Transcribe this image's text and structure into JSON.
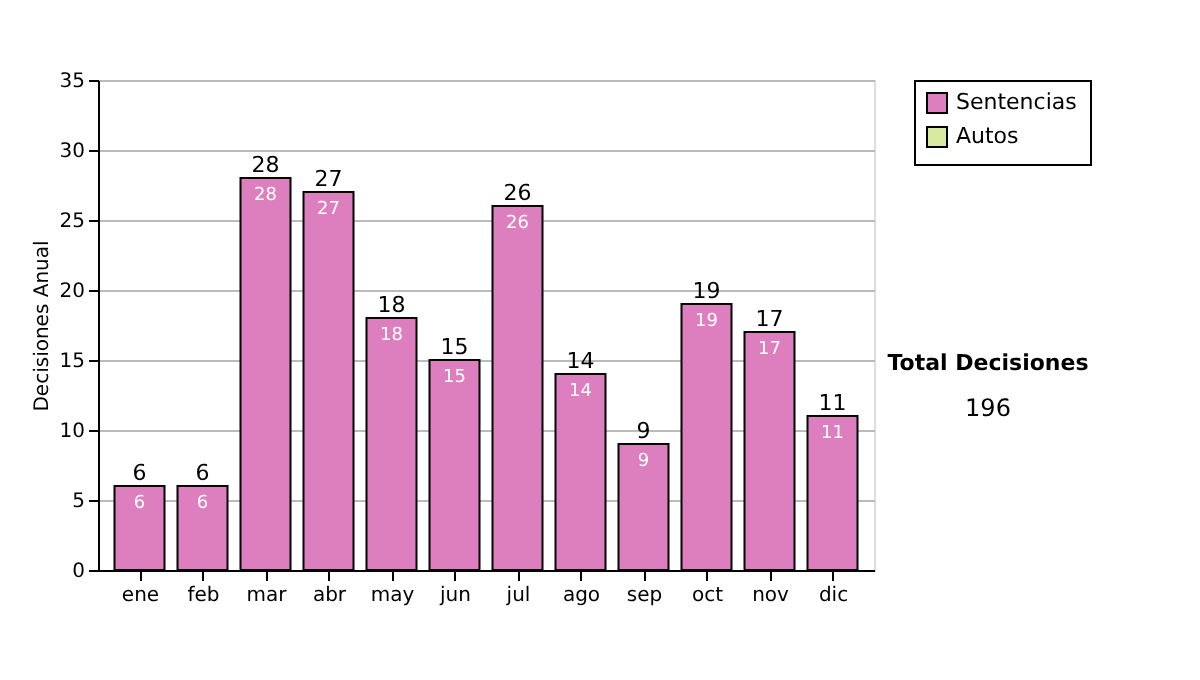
{
  "chart_data": {
    "type": "bar",
    "ylabel": "Decisiones Anual",
    "categories": [
      "ene",
      "feb",
      "mar",
      "abr",
      "may",
      "jun",
      "jul",
      "ago",
      "sep",
      "oct",
      "nov",
      "dic"
    ],
    "series": [
      {
        "name": "Sentencias",
        "color": "#dd7fbf",
        "values": [
          6,
          6,
          28,
          27,
          18,
          15,
          26,
          14,
          9,
          19,
          17,
          11
        ],
        "value_labels": [
          "6",
          "6",
          "28",
          "27",
          "18",
          "15",
          "26",
          "14",
          "9",
          "19",
          "17",
          "11"
        ]
      },
      {
        "name": "Autos",
        "color": "#d6eaa0",
        "values": [
          0,
          0,
          0,
          0,
          0,
          0,
          0,
          0,
          0,
          0,
          0,
          0
        ]
      }
    ],
    "stacked": true,
    "totals": [
      "6",
      "6",
      "28",
      "27",
      "18",
      "15",
      "26",
      "14",
      "9",
      "19",
      "17",
      "11"
    ],
    "ylim": [
      0,
      35
    ],
    "yticks": [
      0,
      5,
      10,
      15,
      20,
      25,
      30,
      35
    ],
    "grid": "y",
    "legend": "right",
    "annotations": [
      "Total Decisiones",
      "196"
    ]
  }
}
